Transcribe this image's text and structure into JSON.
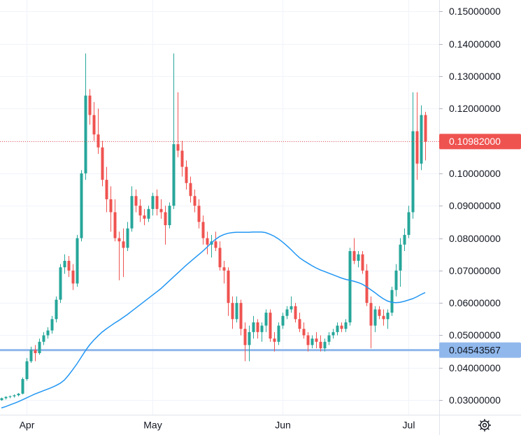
{
  "chart_data": {
    "type": "candlestick",
    "categories": [
      null,
      null,
      null,
      null,
      null,
      null,
      "Apr",
      null,
      null,
      null,
      null,
      null,
      null,
      null,
      null,
      null,
      null,
      null,
      null,
      null,
      null,
      null,
      null,
      null,
      null,
      null,
      null,
      null,
      null,
      null,
      null,
      null,
      null,
      null,
      null,
      null,
      "May",
      null,
      null,
      null,
      null,
      null,
      null,
      null,
      null,
      null,
      null,
      null,
      null,
      null,
      null,
      null,
      null,
      null,
      null,
      null,
      null,
      null,
      null,
      null,
      null,
      null,
      null,
      null,
      null,
      null,
      null,
      "Jun",
      null,
      null,
      null,
      null,
      null,
      null,
      null,
      null,
      null,
      null,
      null,
      null,
      null,
      null,
      null,
      null,
      null,
      null,
      null,
      null,
      null,
      null,
      null,
      null,
      null,
      null,
      null,
      null,
      null,
      "Jul",
      null,
      null,
      null,
      null
    ],
    "open": [
      0.03,
      0.0306,
      0.031,
      0.0312,
      0.0315,
      0.032,
      0.0365,
      0.042,
      0.0455,
      0.0445,
      0.048,
      0.05,
      0.0515,
      0.055,
      0.061,
      0.071,
      0.073,
      0.07,
      0.066,
      0.08,
      0.1,
      0.124,
      0.118,
      0.112,
      0.108,
      0.098,
      0.092,
      0.088,
      0.08,
      0.079,
      0.077,
      0.083,
      0.093,
      0.09,
      0.087,
      0.086,
      0.089,
      0.093,
      0.089,
      0.088,
      0.084,
      0.09,
      0.109,
      0.107,
      0.102,
      0.097,
      0.093,
      0.09,
      0.085,
      0.08,
      0.078,
      0.079,
      0.077,
      0.071,
      0.07,
      0.06,
      0.055,
      0.06,
      0.052,
      0.047,
      0.051,
      0.054,
      0.051,
      0.053,
      0.057,
      0.049,
      0.048,
      0.053,
      0.056,
      0.058,
      0.059,
      0.055,
      0.052,
      0.05,
      0.047,
      0.049,
      0.048,
      0.046,
      0.048,
      0.05,
      0.051,
      0.053,
      0.052,
      0.054,
      0.076,
      0.073,
      0.075,
      0.07,
      0.06,
      0.053,
      0.058,
      0.056,
      0.055,
      0.057,
      0.064,
      0.07,
      0.078,
      0.081,
      0.088,
      0.113,
      0.103,
      0.118
    ],
    "high": [
      0.0308,
      0.0312,
      0.0314,
      0.0318,
      0.0322,
      0.037,
      0.043,
      0.0465,
      0.047,
      0.049,
      0.051,
      0.0525,
      0.056,
      0.062,
      0.072,
      0.075,
      0.0745,
      0.072,
      0.081,
      0.101,
      0.137,
      0.126,
      0.122,
      0.12,
      0.11,
      0.102,
      0.096,
      0.092,
      0.082,
      0.083,
      0.085,
      0.096,
      0.095,
      0.092,
      0.089,
      0.09,
      0.094,
      0.095,
      0.092,
      0.09,
      0.091,
      0.137,
      0.125,
      0.11,
      0.104,
      0.099,
      0.095,
      0.092,
      0.087,
      0.082,
      0.081,
      0.082,
      0.079,
      0.073,
      0.071,
      0.062,
      0.062,
      0.061,
      0.054,
      0.053,
      0.056,
      0.055,
      0.054,
      0.058,
      0.058,
      0.051,
      0.054,
      0.057,
      0.059,
      0.062,
      0.06,
      0.057,
      0.054,
      0.051,
      0.05,
      0.051,
      0.05,
      0.049,
      0.051,
      0.052,
      0.054,
      0.054,
      0.055,
      0.077,
      0.08,
      0.076,
      0.076,
      0.072,
      0.062,
      0.059,
      0.059,
      0.058,
      0.058,
      0.065,
      0.072,
      0.08,
      0.083,
      0.09,
      0.125,
      0.125,
      0.121,
      0.119
    ],
    "low": [
      0.0298,
      0.0302,
      0.0306,
      0.0308,
      0.0312,
      0.0318,
      0.036,
      0.0415,
      0.042,
      0.044,
      0.047,
      0.049,
      0.0505,
      0.054,
      0.06,
      0.069,
      0.068,
      0.064,
      0.065,
      0.079,
      0.098,
      0.115,
      0.11,
      0.106,
      0.096,
      0.088,
      0.082,
      0.079,
      0.067,
      0.068,
      0.076,
      0.082,
      0.088,
      0.085,
      0.084,
      0.085,
      0.087,
      0.087,
      0.086,
      0.078,
      0.083,
      0.089,
      0.105,
      0.099,
      0.095,
      0.091,
      0.088,
      0.083,
      0.078,
      0.075,
      0.074,
      0.076,
      0.07,
      0.066,
      0.056,
      0.052,
      0.054,
      0.05,
      0.042,
      0.042,
      0.049,
      0.049,
      0.048,
      0.051,
      0.048,
      0.045,
      0.047,
      0.052,
      0.055,
      0.057,
      0.054,
      0.051,
      0.049,
      0.045,
      0.046,
      0.046,
      0.045,
      0.045,
      0.047,
      0.049,
      0.05,
      0.051,
      0.051,
      0.053,
      0.072,
      0.071,
      0.069,
      0.059,
      0.046,
      0.051,
      0.055,
      0.053,
      0.052,
      0.056,
      0.062,
      0.065,
      0.076,
      0.08,
      0.086,
      0.098,
      0.101,
      0.104
    ],
    "close": [
      0.0306,
      0.031,
      0.0312,
      0.0315,
      0.032,
      0.0365,
      0.042,
      0.0455,
      0.0445,
      0.048,
      0.05,
      0.0515,
      0.055,
      0.061,
      0.071,
      0.073,
      0.07,
      0.066,
      0.08,
      0.1,
      0.124,
      0.118,
      0.112,
      0.108,
      0.098,
      0.092,
      0.088,
      0.08,
      0.079,
      0.077,
      0.083,
      0.093,
      0.09,
      0.087,
      0.086,
      0.089,
      0.093,
      0.089,
      0.088,
      0.084,
      0.09,
      0.109,
      0.107,
      0.102,
      0.097,
      0.093,
      0.09,
      0.085,
      0.08,
      0.078,
      0.079,
      0.077,
      0.071,
      0.07,
      0.06,
      0.055,
      0.06,
      0.052,
      0.047,
      0.051,
      0.054,
      0.051,
      0.053,
      0.057,
      0.049,
      0.048,
      0.053,
      0.056,
      0.058,
      0.059,
      0.055,
      0.052,
      0.05,
      0.047,
      0.049,
      0.048,
      0.046,
      0.048,
      0.05,
      0.051,
      0.053,
      0.052,
      0.054,
      0.076,
      0.073,
      0.075,
      0.07,
      0.06,
      0.053,
      0.058,
      0.056,
      0.055,
      0.057,
      0.064,
      0.07,
      0.078,
      0.081,
      0.088,
      0.113,
      0.103,
      0.118,
      0.1098
    ],
    "up_color": "#26a69a",
    "down_color": "#ef5350",
    "moving_average": {
      "color": "#2196f3",
      "values": [
        0.0276,
        0.028,
        0.0285,
        0.029,
        0.0295,
        0.0301,
        0.0307,
        0.0313,
        0.0319,
        0.0324,
        0.0329,
        0.0334,
        0.0339,
        0.0345,
        0.0352,
        0.0362,
        0.0377,
        0.0394,
        0.0412,
        0.0432,
        0.0452,
        0.047,
        0.0485,
        0.0498,
        0.051,
        0.052,
        0.0529,
        0.0538,
        0.0546,
        0.0555,
        0.0564,
        0.0574,
        0.0584,
        0.0594,
        0.0604,
        0.0614,
        0.0624,
        0.0634,
        0.0644,
        0.0656,
        0.0668,
        0.068,
        0.0692,
        0.0704,
        0.0716,
        0.0727,
        0.0738,
        0.0749,
        0.076,
        0.0772,
        0.0785,
        0.0796,
        0.0805,
        0.0811,
        0.0815,
        0.0817,
        0.0818,
        0.0818,
        0.0818,
        0.0818,
        0.0819,
        0.0819,
        0.0819,
        0.0817,
        0.0812,
        0.0806,
        0.0798,
        0.0788,
        0.0777,
        0.0765,
        0.0752,
        0.074,
        0.0731,
        0.0723,
        0.0715,
        0.0708,
        0.0702,
        0.0697,
        0.0692,
        0.0687,
        0.0682,
        0.0677,
        0.0673,
        0.067,
        0.0667,
        0.0663,
        0.0658,
        0.065,
        0.0641,
        0.0632,
        0.0622,
        0.0613,
        0.0606,
        0.0602,
        0.0601,
        0.0602,
        0.0605,
        0.0609,
        0.0613,
        0.0619,
        0.0626,
        0.0632
      ]
    },
    "price_line": {
      "value": 0.10982,
      "label": "0.10982000",
      "color": "#ef5350"
    },
    "level_line": {
      "value": 0.04543567,
      "label": "0.04543567",
      "color": "#90b8ec"
    },
    "ylim": [
      0.0255,
      0.1535
    ],
    "yticks": [
      {
        "value": 0.03,
        "label": "0.03000000"
      },
      {
        "value": 0.04,
        "label": "0.04000000"
      },
      {
        "value": 0.05,
        "label": "0.05000000"
      },
      {
        "value": 0.06,
        "label": "0.06000000"
      },
      {
        "value": 0.07,
        "label": "0.07000000"
      },
      {
        "value": 0.08,
        "label": "0.08000000"
      },
      {
        "value": 0.09,
        "label": "0.09000000"
      },
      {
        "value": 0.1,
        "label": "0.10000000"
      },
      {
        "value": 0.11,
        "label": "0.11000000"
      },
      {
        "value": 0.12,
        "label": "0.12000000"
      },
      {
        "value": 0.13,
        "label": "0.13000000"
      },
      {
        "value": 0.14,
        "label": "0.14000000"
      },
      {
        "value": 0.15,
        "label": "0.15000000"
      }
    ],
    "grid": true
  }
}
